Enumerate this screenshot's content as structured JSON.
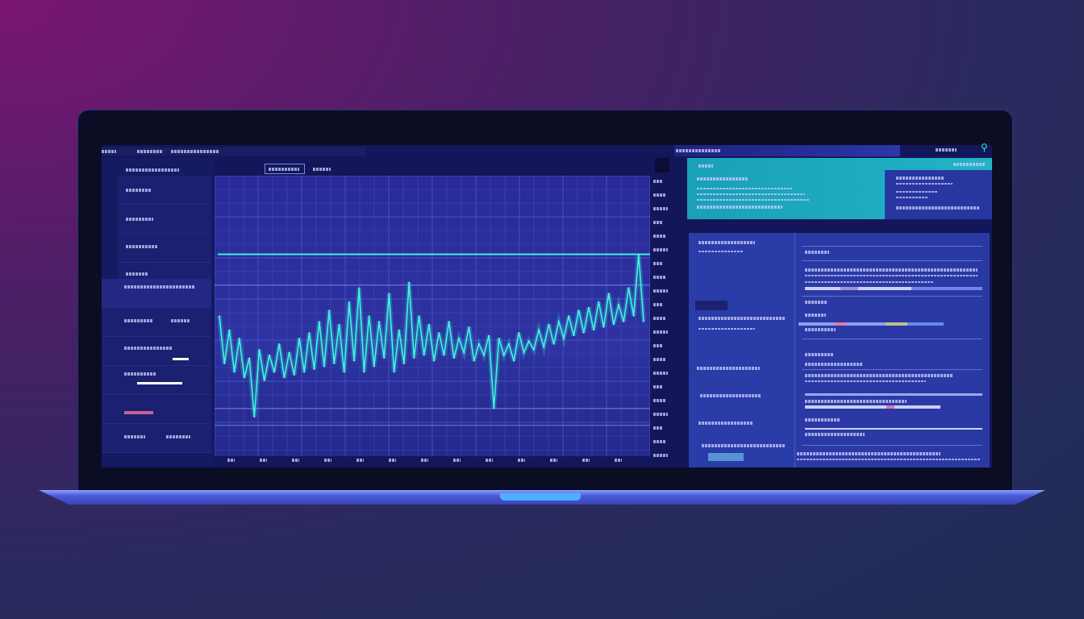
{
  "colors": {
    "background_left": "#7a1672",
    "background_right": "#1f2d55",
    "screen": "#13175a",
    "accent_teal": "#2ee8d8",
    "card_teal": "#1fa8bd",
    "card_navy": "#2b39a4"
  },
  "chart_data": {
    "type": "line",
    "title": "",
    "xlabel": "",
    "ylabel": "",
    "grid": true,
    "reference_lines": [
      72,
      61,
      17,
      11
    ],
    "values": [
      50,
      33,
      45,
      30,
      42,
      28,
      35,
      14,
      38,
      27,
      36,
      30,
      40,
      28,
      37,
      29,
      42,
      30,
      44,
      31,
      48,
      32,
      52,
      33,
      47,
      30,
      55,
      34,
      60,
      30,
      50,
      32,
      48,
      35,
      58,
      30,
      45,
      33,
      62,
      35,
      50,
      36,
      47,
      34,
      44,
      36,
      48,
      35,
      42,
      37,
      46,
      34,
      40,
      36,
      43,
      17,
      42,
      36,
      40,
      34,
      44,
      37,
      41,
      38,
      45,
      39,
      47,
      40,
      48,
      42,
      50,
      43,
      52,
      44,
      53,
      45,
      55,
      46,
      58,
      47,
      54,
      48,
      60,
      50,
      72,
      48
    ],
    "ylim": [
      0,
      100
    ]
  }
}
